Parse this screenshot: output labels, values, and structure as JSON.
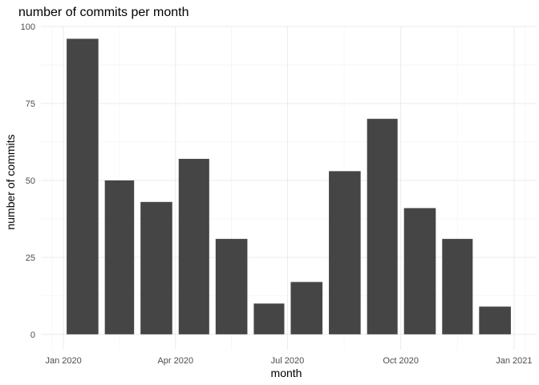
{
  "chart_data": {
    "type": "bar",
    "title": "number of commits per month",
    "xlabel": "month",
    "ylabel": "number of commits",
    "x": [
      "2020-01",
      "2020-02",
      "2020-03",
      "2020-04",
      "2020-05",
      "2020-06",
      "2020-07",
      "2020-08",
      "2020-09",
      "2020-10",
      "2020-11",
      "2020-12"
    ],
    "values": [
      96,
      50,
      43,
      57,
      31,
      10,
      17,
      53,
      70,
      41,
      31,
      9
    ],
    "ylim": [
      0,
      100
    ],
    "xlim": [
      "2020-01",
      "2021-01"
    ],
    "x_ticks": [
      "Jan 2020",
      "Apr 2020",
      "Jul 2020",
      "Oct 2020",
      "Jan 2021"
    ],
    "y_ticks": [
      "0",
      "25",
      "50",
      "75",
      "100"
    ],
    "grid": true,
    "bar_color": "#454545"
  }
}
